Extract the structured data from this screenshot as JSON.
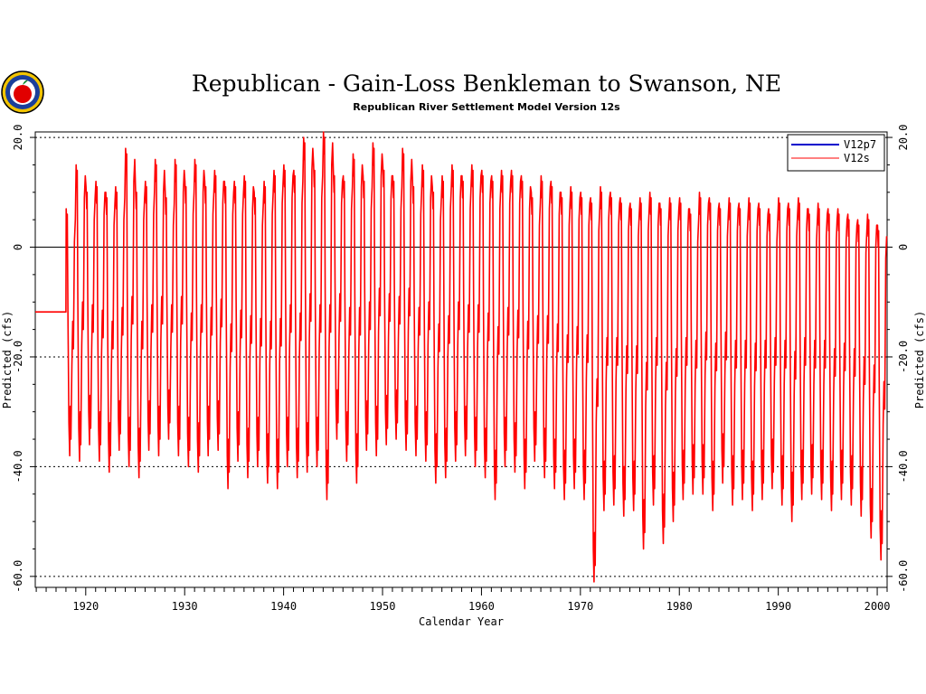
{
  "title": "Republican - Gain-Loss Benkleman to Swanson, NE",
  "subtitle": "Republican River Settlement Model Version 12s",
  "logo": {
    "icon": "apple-seal-logo"
  },
  "colors": {
    "series_a": "#0000cc",
    "series_b": "#ff0000",
    "axis": "#000000"
  },
  "chart_data": {
    "type": "line",
    "xlabel": "Calendar Year",
    "ylabel": "Predicted (cfs)",
    "ylabel_right": "Predicted (cfs)",
    "xlim": [
      1914.9,
      2001.0
    ],
    "ylim": [
      -62,
      21
    ],
    "xticks": [
      1920,
      1930,
      1940,
      1950,
      1960,
      1970,
      1980,
      1990,
      2000
    ],
    "xtick_labels": [
      "1920",
      "1930",
      "1940",
      "1950",
      "1960",
      "1970",
      "1980",
      "1990",
      "2000"
    ],
    "yticks": [
      20,
      0,
      -20,
      -40,
      -60
    ],
    "ytick_labels": [
      "20.0",
      "0",
      "-20.0",
      "-40.0",
      "-60.0"
    ],
    "ytick_labels_right": [
      "20.0",
      "0",
      "-20.0",
      "-40.0",
      "-60.0"
    ],
    "grid": "dashed horizontal at y ticks, solid at zero",
    "legend_position": "top-right",
    "series": [
      {
        "name": "V12p7",
        "values": []
      },
      {
        "name": "V12s",
        "start_flat": {
          "x": [
            1914.9,
            1918.0
          ],
          "y": -11.8
        },
        "annual": {
          "years": [
            1918,
            1919,
            1920,
            1921,
            1922,
            1923,
            1924,
            1925,
            1926,
            1927,
            1928,
            1929,
            1930,
            1931,
            1932,
            1933,
            1934,
            1935,
            1936,
            1937,
            1938,
            1939,
            1940,
            1941,
            1942,
            1943,
            1944,
            1945,
            1946,
            1947,
            1948,
            1949,
            1950,
            1951,
            1952,
            1953,
            1954,
            1955,
            1956,
            1957,
            1958,
            1959,
            1960,
            1961,
            1962,
            1963,
            1964,
            1965,
            1966,
            1967,
            1968,
            1969,
            1970,
            1971,
            1972,
            1973,
            1974,
            1975,
            1976,
            1977,
            1978,
            1979,
            1980,
            1981,
            1982,
            1983,
            1984,
            1985,
            1986,
            1987,
            1988,
            1989,
            1990,
            1991,
            1992,
            1993,
            1994,
            1995,
            1996,
            1997,
            1998,
            1999,
            2000
          ],
          "high": [
            7,
            15,
            11,
            12,
            10,
            11,
            18,
            11,
            12,
            16,
            10,
            16,
            12,
            16,
            12,
            14,
            12,
            12,
            13,
            10,
            12,
            14,
            15,
            14,
            20,
            15,
            21,
            14,
            13,
            17,
            13,
            19,
            15,
            13,
            18,
            12,
            15,
            11,
            13,
            15,
            13,
            15,
            14,
            13,
            14,
            14,
            13,
            10,
            13,
            12,
            10,
            11,
            10,
            9,
            11,
            10,
            9,
            8,
            9,
            10,
            8,
            9,
            9,
            7,
            10,
            9,
            8,
            9,
            8,
            9,
            8,
            7,
            9,
            8,
            9,
            7,
            8,
            7,
            7,
            6,
            5,
            6,
            4
          ],
          "low": [
            -38,
            -39,
            -36,
            -39,
            -41,
            -37,
            -40,
            -42,
            -37,
            -38,
            -35,
            -38,
            -40,
            -41,
            -38,
            -37,
            -44,
            -39,
            -42,
            -40,
            -43,
            -44,
            -40,
            -42,
            -41,
            -40,
            -46,
            -35,
            -39,
            -43,
            -37,
            -38,
            -36,
            -35,
            -37,
            -38,
            -39,
            -43,
            -42,
            -39,
            -38,
            -40,
            -42,
            -46,
            -40,
            -41,
            -44,
            -39,
            -42,
            -44,
            -46,
            -44,
            -46,
            -61,
            -48,
            -47,
            -49,
            -48,
            -55,
            -47,
            -54,
            -50,
            -46,
            -45,
            -45,
            -48,
            -43,
            -47,
            -46,
            -48,
            -46,
            -44,
            -47,
            -50,
            -46,
            -45,
            -46,
            -48,
            -46,
            -47,
            -49,
            -53,
            -57
          ]
        }
      }
    ]
  }
}
